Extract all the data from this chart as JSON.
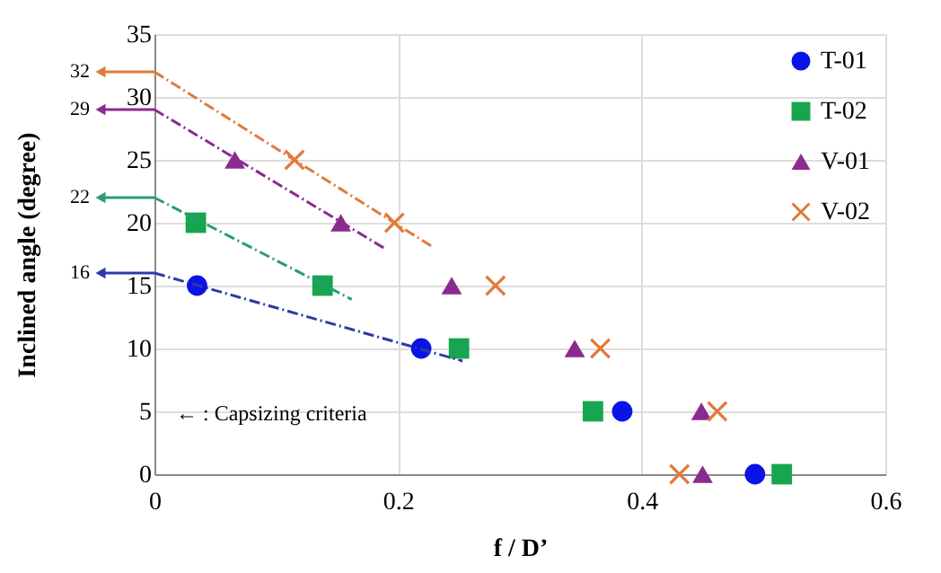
{
  "chart_data": {
    "type": "scatter",
    "xlabel": "f / D’",
    "ylabel": "Inclined angle (degree)",
    "xlim": [
      0,
      0.6
    ],
    "xticks": [
      0,
      0.2,
      0.4,
      0.6
    ],
    "ylim": [
      0,
      35
    ],
    "yticks": [
      0,
      5,
      10,
      15,
      20,
      25,
      30,
      35
    ],
    "grid": true,
    "legend": "top right",
    "series": [
      {
        "name": "T-01",
        "color": "#0a14e6",
        "marker": "circle",
        "x": [
          0.035,
          0.219,
          0.384,
          0.493
        ],
        "values": [
          15,
          10,
          5,
          0
        ]
      },
      {
        "name": "T-02",
        "color": "#18a550",
        "marker": "square",
        "x": [
          0.034,
          0.138,
          0.25,
          0.36,
          0.515
        ],
        "values": [
          20,
          15,
          10,
          5,
          0
        ]
      },
      {
        "name": "V-01",
        "color": "#8b2a8f",
        "marker": "triangle",
        "x": [
          0.066,
          0.153,
          0.244,
          0.345,
          0.449,
          0.45
        ],
        "values": [
          25,
          20,
          15,
          10,
          5,
          0
        ]
      },
      {
        "name": "V-02",
        "color": "#e07a3a",
        "marker": "cross",
        "x": [
          0.115,
          0.197,
          0.28,
          0.366,
          0.462,
          0.431
        ],
        "values": [
          25,
          20,
          15,
          10,
          5,
          0
        ]
      },
      {
        "type": "line",
        "color": "#2f3aa8",
        "line_style": "dashed",
        "x": [
          0,
          0.253
        ],
        "values": [
          16,
          9
        ]
      },
      {
        "type": "line",
        "color": "#2a9d70",
        "line_style": "dashed",
        "x": [
          0,
          0.162
        ],
        "values": [
          22,
          13.9
        ]
      },
      {
        "type": "line",
        "color": "#8b2a8f",
        "line_style": "dashed",
        "x": [
          0,
          0.19
        ],
        "values": [
          29,
          17.9
        ]
      },
      {
        "type": "line",
        "color": "#e07a3a",
        "line_style": "dashed",
        "x": [
          0,
          0.228
        ],
        "values": [
          32,
          18.1
        ]
      }
    ],
    "ref_lines": [
      {
        "axis": "y",
        "value": 32,
        "label": "32",
        "color": "#e07a3a"
      },
      {
        "axis": "y",
        "value": 29,
        "label": "29",
        "color": "#8b2a8f"
      },
      {
        "axis": "y",
        "value": 22,
        "label": "22",
        "color": "#2a9d70"
      },
      {
        "axis": "y",
        "value": 16,
        "label": "16",
        "color": "#2f3aa8"
      }
    ],
    "annotations": [
      "← : Capsizing criteria"
    ]
  }
}
